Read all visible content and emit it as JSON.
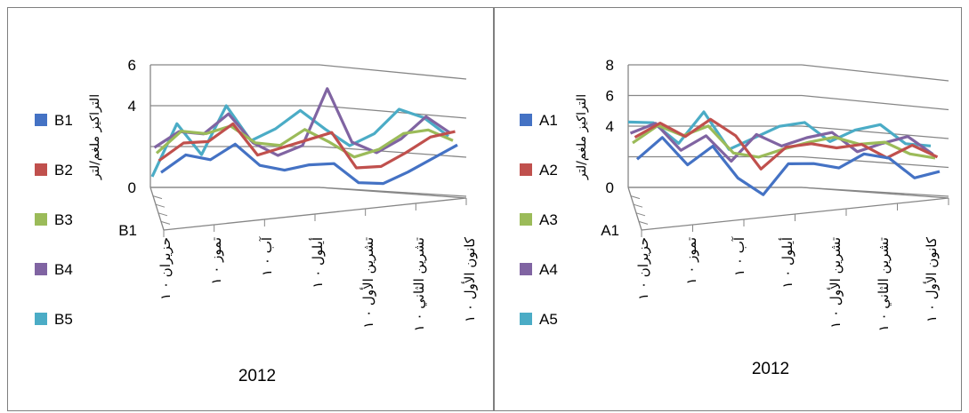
{
  "chart_data": [
    {
      "type": "line",
      "id": "B",
      "categories": [
        "حزيران",
        "تموز",
        "آب",
        "أيلول",
        "تشرين الأول",
        "تشرين الثاني",
        "كانون الأول"
      ],
      "category_display": [
        "۱ ۰ حزيران",
        "۱ ۰ تموز",
        "۱ ۰ آب",
        "۱ ۰ أيلول",
        "۱ ۰ تشرين الأول",
        "۱ ۰ تشرين الثاني",
        "۱ ۰ كانون الأول"
      ],
      "x": [
        0,
        0.5,
        1,
        1.5,
        2,
        2.5,
        3,
        3.5,
        4,
        4.5,
        5,
        5.5,
        6
      ],
      "series": [
        {
          "name": "B1",
          "color": "#4472C4",
          "values": [
            1.6,
            2.6,
            2.5,
            3.4,
            2.5,
            2.4,
            2.8,
            3.0,
            2.2,
            2.3,
            3.0,
            3.8,
            4.6
          ]
        },
        {
          "name": "B2",
          "color": "#C0504D",
          "values": [
            2.0,
            3.0,
            3.2,
            4.2,
            2.8,
            3.3,
            3.8,
            4.3,
            2.7,
            2.9,
            3.7,
            4.6,
            5.0
          ]
        },
        {
          "name": "B3",
          "color": "#9BBB59",
          "values": [
            2.2,
            3.4,
            3.4,
            3.9,
            3.2,
            3.2,
            4.1,
            3.6,
            3.0,
            3.5,
            4.4,
            4.7,
            4.3
          ]
        },
        {
          "name": "B4",
          "color": "#8064A2",
          "values": [
            2.3,
            3.2,
            3.2,
            4.3,
            3.0,
            2.5,
            3.1,
            6.0,
            3.5,
            3.1,
            3.9,
            5.1,
            4.4
          ]
        },
        {
          "name": "B5",
          "color": "#4BACC6",
          "values": [
            0.7,
            3.4,
            2.0,
            4.5,
            2.9,
            3.6,
            4.6,
            3.8,
            3.1,
            3.8,
            5.1,
            4.8,
            4.0
          ]
        }
      ],
      "ylim": [
        0,
        6
      ],
      "yticks": [
        0,
        2,
        4,
        6
      ],
      "ytick_labels": [
        "0",
        "",
        "4",
        "6"
      ],
      "ylabel": "التراكيز ملغم/لتر",
      "depth_label": "B1",
      "xlabel": "2012",
      "legend": "left",
      "grid": true
    },
    {
      "type": "line",
      "id": "A",
      "categories": [
        "حزيران",
        "تموز",
        "آب",
        "أيلول",
        "تشرين الأول",
        "تشرين الثاني",
        "كانون الأول"
      ],
      "category_display": [
        "۱ ۰ حزيران",
        "۱ ۰ تموز",
        "۱ ۰ آب",
        "۱ ۰ أيلول",
        "۱ ۰ تشرين الأول",
        "۱ ۰ تشرين الثاني",
        "۱ ۰ كانون الأول"
      ],
      "x": [
        0,
        0.5,
        1,
        1.5,
        2,
        2.5,
        3,
        3.5,
        4,
        4.5,
        5,
        5.5,
        6
      ],
      "series": [
        {
          "name": "A1",
          "color": "#4472C4",
          "values": [
            3.0,
            4.6,
            3.0,
            4.4,
            2.5,
            1.6,
            3.8,
            4.0,
            3.9,
            5.0,
            4.9,
            3.8,
            4.4
          ]
        },
        {
          "name": "A2",
          "color": "#C0504D",
          "values": [
            4.2,
            5.3,
            4.6,
            5.9,
            5.0,
            3.0,
            4.6,
            5.0,
            4.9,
            5.3,
            4.6,
            5.6,
            5.0
          ]
        },
        {
          "name": "A3",
          "color": "#9BBB59",
          "values": [
            3.6,
            4.9,
            4.4,
            5.2,
            3.6,
            3.5,
            4.2,
            4.8,
            5.3,
            5.0,
            5.3,
            4.7,
            4.6
          ]
        },
        {
          "name": "A4",
          "color": "#8064A2",
          "values": [
            4.0,
            4.8,
            3.2,
            4.3,
            2.8,
            4.7,
            4.1,
            4.8,
            5.3,
            4.2,
            4.9,
            5.5,
            4.5
          ]
        },
        {
          "name": "A5",
          "color": "#4BACC6",
          "values": [
            4.5,
            4.6,
            3.4,
            5.6,
            3.3,
            4.2,
            5.1,
            5.5,
            4.4,
            5.3,
            5.8,
            4.7,
            4.7
          ]
        }
      ],
      "ylim": [
        0,
        8
      ],
      "yticks": [
        0,
        2,
        4,
        6,
        8
      ],
      "ytick_labels": [
        "0",
        "",
        "4",
        "6",
        "8"
      ],
      "ylabel": "التراكيز ملغم/لتر",
      "depth_label": "A1",
      "xlabel": "2012",
      "legend": "left",
      "grid": true
    }
  ]
}
